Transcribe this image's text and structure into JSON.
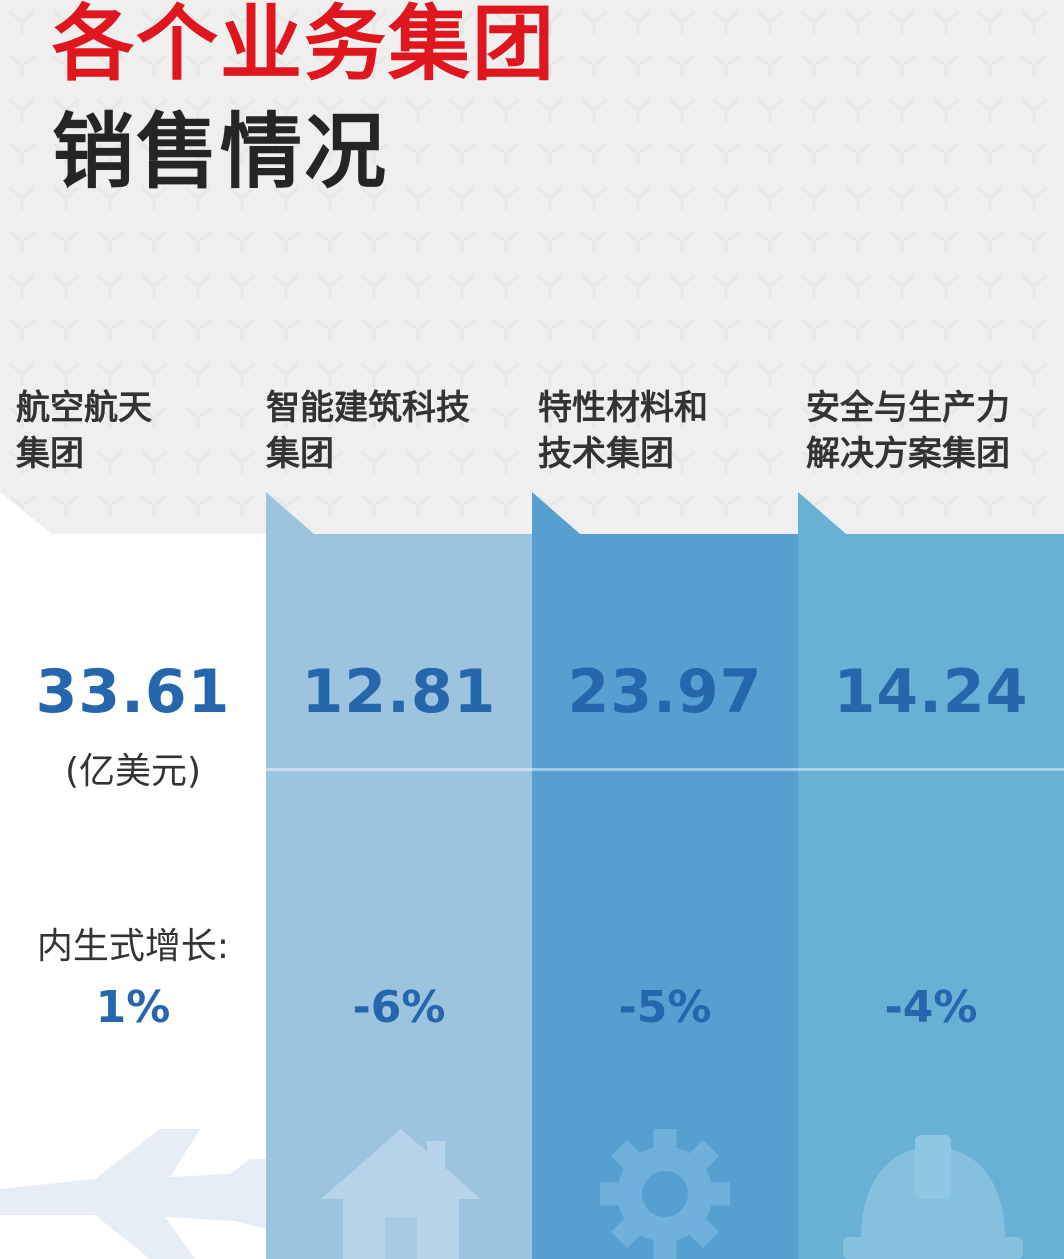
{
  "title": {
    "line1": "各个业务集团",
    "line2": "销售情况"
  },
  "unit": "(亿美元)",
  "growth_label": "内生式增长:",
  "groups": [
    {
      "line1": "航空航天",
      "line2": "集团",
      "sales": "33.61",
      "growth": "1%",
      "icon": "airplane-icon",
      "color": "#ffffff"
    },
    {
      "line1": "智能建筑科技",
      "line2": "集团",
      "sales": "12.81",
      "growth": "-6%",
      "icon": "house-icon",
      "color": "#9cc4df"
    },
    {
      "line1": "特性材料和",
      "line2": "技术集团",
      "sales": "23.97",
      "growth": "-5%",
      "icon": "gear-icon",
      "color": "#569fd0"
    },
    {
      "line1": "安全与生产力",
      "line2": "解决方案集团",
      "sales": "14.24",
      "growth": "-4%",
      "icon": "hard-hat-icon",
      "color": "#68b0d4"
    }
  ]
}
